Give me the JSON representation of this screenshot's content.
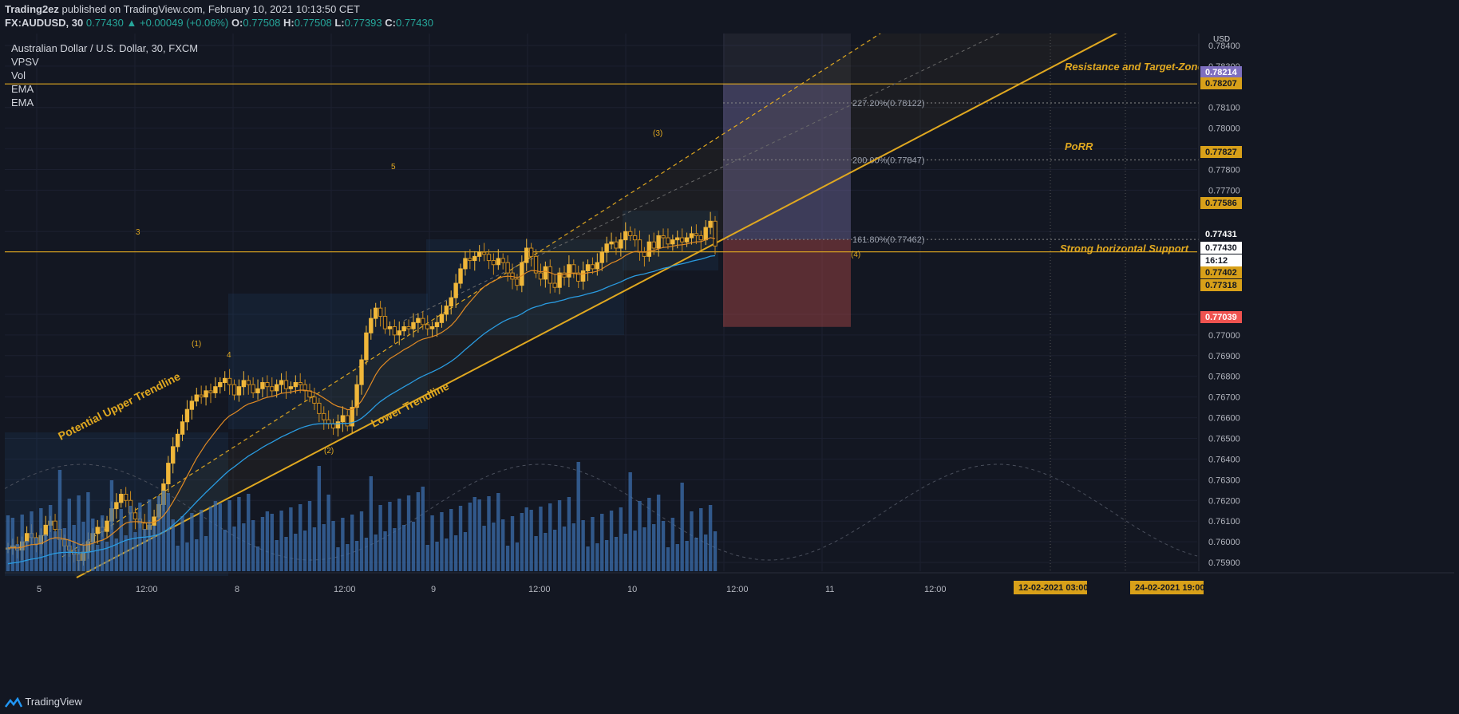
{
  "header": {
    "author": "Trading2ez",
    "published": "published on TradingView.com, February 10, 2021 10:13:50 CET",
    "symbol": "FX:AUDUSD, 30",
    "last": "0.77430",
    "change": "+0.00049 (+0.06%)",
    "open_label": "O:",
    "open": "0.77508",
    "high_label": "H:",
    "high": "0.77508",
    "low_label": "L:",
    "low": "0.77393",
    "close_label": "C:",
    "close": "0.77430"
  },
  "legend": {
    "title": "Australian Dollar / U.S. Dollar, 30, FXCM",
    "indicators": [
      "VPSV",
      "Vol",
      "EMA",
      "EMA"
    ]
  },
  "footer": {
    "brand": "TradingView"
  },
  "colors": {
    "background": "#131722",
    "up": "#f0b73a",
    "accent": "#e0a820",
    "ema_fast": "#e08a24",
    "ema_slow": "#2a9be0",
    "volume": "#3c6fae",
    "target_zone": "#8c80c0",
    "stop_zone": "#b04a4a"
  },
  "annotations": {
    "resistance": "Resistance and Target-Zone",
    "porr": "PoRR",
    "support": "Strong horizontal Support",
    "upper_trend": "Potential Upper Trendline",
    "lower_trend": "Lower Trendline",
    "fib_227": "227.20%(0.78122)",
    "fib_200": "200.00%(0.77847)",
    "fib_161": "161.80%(0.77462)",
    "wave_labels": [
      "3",
      "5",
      "(3)",
      "(1)",
      "4",
      "(2)",
      "(4)"
    ]
  },
  "chart_data": {
    "type": "candlestick",
    "title": "Australian Dollar / U.S. Dollar, 30, FXCM",
    "currency": "USD",
    "ylim": [
      0.7585,
      0.7845
    ],
    "y_ticks": [
      "0.78400",
      "0.78300",
      "0.78100",
      "0.78000",
      "0.77900",
      "0.77800",
      "0.77700",
      "0.77500",
      "0.77100",
      "0.77000",
      "0.76900",
      "0.76800",
      "0.76700",
      "0.76600",
      "0.76500",
      "0.76400",
      "0.76300",
      "0.76200",
      "0.76100",
      "0.76000",
      "0.75900"
    ],
    "x_ticks": [
      "5",
      "12:00",
      "8",
      "12:00",
      "9",
      "12:00",
      "10",
      "12:00",
      "11",
      "12:00"
    ],
    "price_tags": [
      {
        "value": "0.78214",
        "color": "#7e6fbf",
        "text_color": "#ffffff"
      },
      {
        "value": "0.78207",
        "color": "#d8a019",
        "text_color": "#131722"
      },
      {
        "value": "0.77827",
        "color": "#d8a019",
        "text_color": "#131722"
      },
      {
        "value": "0.77586",
        "color": "#d8a019",
        "text_color": "#131722"
      },
      {
        "value": "0.77431",
        "color": "#131722",
        "text_color": "#ffffff"
      },
      {
        "value": "0.77430",
        "color": "#ffffff",
        "text_color": "#131722"
      },
      {
        "value": "16:12",
        "color": "#ffffff",
        "text_color": "#131722"
      },
      {
        "value": "0.77402",
        "color": "#d8a019",
        "text_color": "#131722"
      },
      {
        "value": "0.77318",
        "color": "#d8a019",
        "text_color": "#131722"
      },
      {
        "value": "0.77039",
        "color": "#ef5350",
        "text_color": "#ffffff"
      }
    ],
    "date_tags": [
      "12-02-2021   03:00",
      "24-02-2021   19:00"
    ],
    "horizontal_levels": [
      0.78214,
      0.77402
    ],
    "projection": {
      "target": 0.78214,
      "entry": 0.77462,
      "stop": 0.77039
    },
    "closes": [
      0.7597,
      0.7598,
      0.7596,
      0.76,
      0.7604,
      0.7602,
      0.7599,
      0.7603,
      0.7608,
      0.761,
      0.7606,
      0.7601,
      0.7598,
      0.7596,
      0.7594,
      0.7591,
      0.7595,
      0.76,
      0.7604,
      0.7607,
      0.7605,
      0.761,
      0.7616,
      0.7619,
      0.7623,
      0.762,
      0.7614,
      0.7611,
      0.7609,
      0.7606,
      0.7608,
      0.7612,
      0.7618,
      0.7628,
      0.7638,
      0.7646,
      0.7652,
      0.7658,
      0.7664,
      0.7668,
      0.7671,
      0.767,
      0.7673,
      0.7672,
      0.7675,
      0.7677,
      0.7679,
      0.7676,
      0.7671,
      0.7675,
      0.7678,
      0.7676,
      0.7672,
      0.7674,
      0.7677,
      0.7675,
      0.7673,
      0.7676,
      0.7678,
      0.7674,
      0.7675,
      0.7677,
      0.7676,
      0.7673,
      0.767,
      0.7667,
      0.7662,
      0.7659,
      0.7657,
      0.7655,
      0.7658,
      0.7661,
      0.7656,
      0.7665,
      0.7676,
      0.7688,
      0.7701,
      0.7708,
      0.7713,
      0.7709,
      0.7703,
      0.7704,
      0.77,
      0.7702,
      0.7704,
      0.7703,
      0.7706,
      0.7708,
      0.7705,
      0.7703,
      0.7704,
      0.7706,
      0.771,
      0.7714,
      0.7718,
      0.7725,
      0.7732,
      0.7737,
      0.7736,
      0.7738,
      0.774,
      0.7739,
      0.7736,
      0.7734,
      0.7737,
      0.7735,
      0.773,
      0.7727,
      0.7724,
      0.7735,
      0.7742,
      0.7738,
      0.773,
      0.7727,
      0.7733,
      0.7725,
      0.7723,
      0.773,
      0.7728,
      0.7734,
      0.773,
      0.7726,
      0.7731,
      0.7734,
      0.7732,
      0.7735,
      0.774,
      0.7744,
      0.7745,
      0.7742,
      0.7746,
      0.775,
      0.7748,
      0.7746,
      0.774,
      0.7738,
      0.7745,
      0.7742,
      0.7748,
      0.7747,
      0.7744,
      0.7746,
      0.7747,
      0.7745,
      0.7747,
      0.7749,
      0.7748,
      0.7746,
      0.7752,
      0.7755,
      0.7743
    ]
  }
}
